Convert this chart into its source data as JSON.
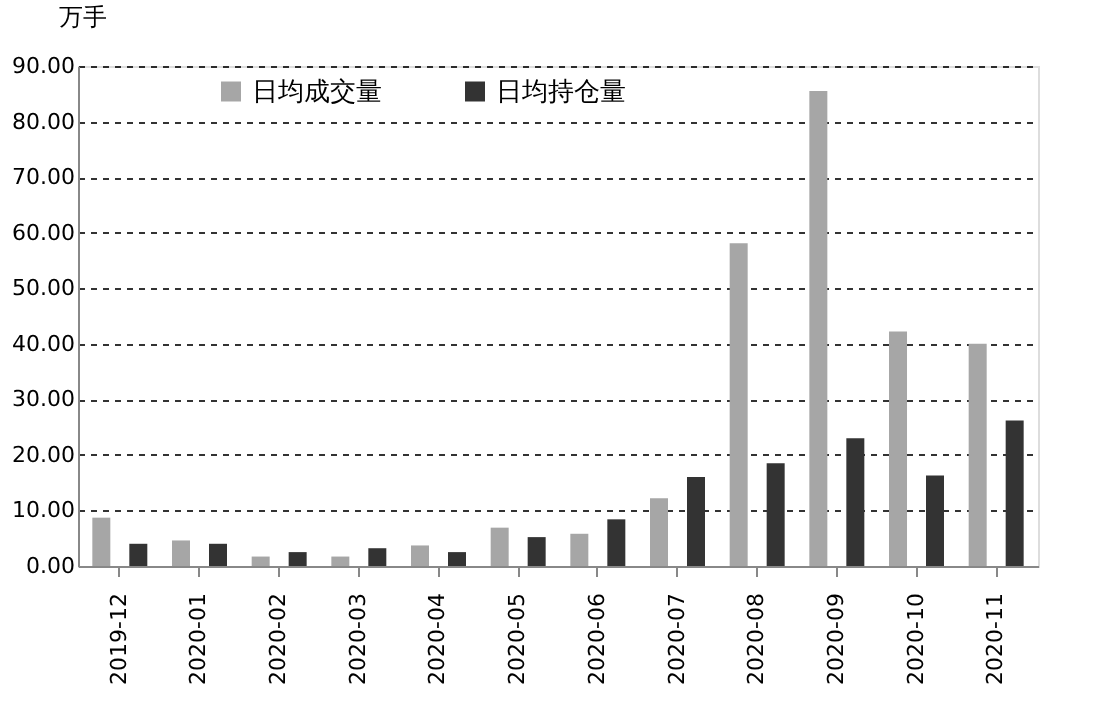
{
  "chart_data": {
    "type": "bar",
    "ylabel": "万手",
    "categories": [
      "2019-12",
      "2020-01",
      "2020-02",
      "2020-03",
      "2020-04",
      "2020-05",
      "2020-06",
      "2020-07",
      "2020-08",
      "2020-09",
      "2020-10",
      "2020-11"
    ],
    "series": [
      {
        "name": "日均成交量",
        "color": "#a6a6a6",
        "values": [
          8.7,
          4.6,
          1.7,
          1.7,
          3.7,
          6.9,
          5.8,
          12.2,
          58.1,
          85.5,
          42.2,
          40.0
        ]
      },
      {
        "name": "日均持仓量",
        "color": "#333333",
        "values": [
          4.0,
          4.0,
          2.5,
          3.2,
          2.5,
          5.2,
          8.4,
          16.0,
          18.5,
          23.0,
          16.3,
          26.2
        ]
      }
    ],
    "ylim": [
      0,
      90
    ],
    "yticks": [
      {
        "value": 0,
        "label": "0.00"
      },
      {
        "value": 10,
        "label": "10.00"
      },
      {
        "value": 20,
        "label": "20.00"
      },
      {
        "value": 30,
        "label": "30.00"
      },
      {
        "value": 40,
        "label": "40.00"
      },
      {
        "value": 50,
        "label": "50.00"
      },
      {
        "value": 60,
        "label": "60.00"
      },
      {
        "value": 70,
        "label": "70.00"
      },
      {
        "value": 80,
        "label": "80.00"
      },
      {
        "value": 90,
        "label": "90.00"
      }
    ],
    "grid": "y",
    "legend": "top"
  }
}
